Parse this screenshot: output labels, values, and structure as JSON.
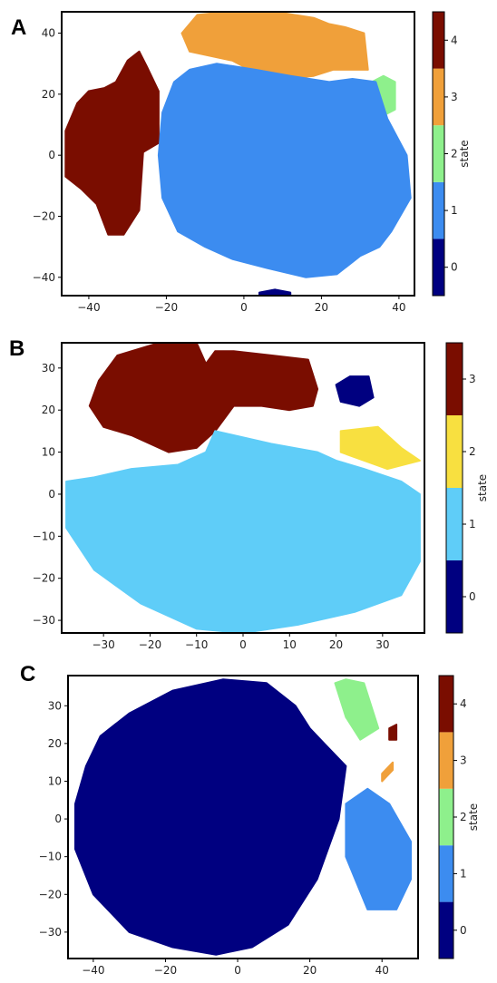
{
  "chart_data": [
    {
      "panel": "A",
      "type": "scatter",
      "title": "",
      "xlabel": "",
      "ylabel": "",
      "xlim": [
        -47,
        44
      ],
      "ylim": [
        -46,
        47
      ],
      "xticks": [
        -40,
        -20,
        0,
        20,
        40
      ],
      "yticks": [
        -40,
        -20,
        0,
        20,
        40
      ],
      "colorbar": {
        "label": "state",
        "ticks": [
          0,
          1,
          2,
          3,
          4
        ],
        "colors": [
          "#000080",
          "#3c8cf0",
          "#8ef08c",
          "#f0a03a",
          "#7a0d00"
        ]
      },
      "regions": [
        {
          "state": 4,
          "x": [
            -36,
            -33,
            -30,
            -27,
            -25,
            -22,
            -22,
            -26,
            -27,
            -31,
            -35,
            -38,
            -42,
            -46,
            -46,
            -43,
            -40
          ],
          "y": [
            22,
            24,
            31,
            34,
            29,
            21,
            4,
            1,
            -18,
            -26,
            -26,
            -16,
            -11,
            -7,
            8,
            17,
            21
          ]
        },
        {
          "state": 3,
          "x": [
            -16,
            -12,
            -4,
            8,
            18,
            22,
            26,
            31,
            32,
            23,
            18,
            10,
            3,
            -3,
            -14
          ],
          "y": [
            40,
            46,
            47,
            47,
            45,
            43,
            42,
            40,
            28,
            28,
            26,
            25,
            27,
            31,
            34
          ]
        },
        {
          "state": 2,
          "x": [
            33,
            36,
            39,
            39,
            36,
            33
          ],
          "y": [
            24,
            26,
            24,
            15,
            13,
            16
          ]
        },
        {
          "state": 1,
          "x": [
            -18,
            -14,
            -7,
            3,
            12,
            22,
            28,
            34,
            37,
            42,
            43,
            38,
            35,
            30,
            24,
            16,
            6,
            -3,
            -10,
            -17,
            -21,
            -22,
            -21
          ],
          "y": [
            24,
            28,
            30,
            28,
            26,
            24,
            25,
            24,
            12,
            0,
            -14,
            -25,
            -30,
            -33,
            -39,
            -40,
            -37,
            -34,
            -30,
            -25,
            -14,
            0,
            14
          ]
        },
        {
          "state": 0,
          "x": [
            4,
            8,
            12,
            12,
            8,
            4
          ],
          "y": [
            -45,
            -44,
            -45,
            -46.5,
            -47,
            -46
          ]
        }
      ]
    },
    {
      "panel": "B",
      "type": "scatter",
      "title": "",
      "xlabel": "",
      "ylabel": "",
      "xlim": [
        -39,
        39
      ],
      "ylim": [
        -33,
        36
      ],
      "xticks": [
        -30,
        -20,
        -10,
        0,
        10,
        20,
        30
      ],
      "yticks": [
        -30,
        -20,
        -10,
        0,
        10,
        20,
        30
      ],
      "colorbar": {
        "label": "state",
        "ticks": [
          0,
          1,
          2,
          3
        ],
        "colors": [
          "#000080",
          "#5fcdf8",
          "#f8e040",
          "#7a0d00"
        ]
      },
      "regions": [
        {
          "state": 3,
          "x": [
            -31,
            -27,
            -18,
            -10,
            -8,
            -6,
            -2,
            6,
            14,
            16,
            15,
            10,
            4,
            -2,
            -6,
            -10,
            -16,
            -24,
            -30,
            -33
          ],
          "y": [
            27,
            33,
            36,
            36,
            31,
            34,
            34,
            33,
            32,
            25,
            21,
            20,
            21,
            21,
            15,
            11,
            10,
            14,
            16,
            21
          ]
        },
        {
          "state": 0,
          "x": [
            20,
            23,
            27,
            28,
            25,
            21
          ],
          "y": [
            26,
            28,
            28,
            23,
            21,
            22
          ]
        },
        {
          "state": 2,
          "x": [
            21,
            29,
            34,
            38,
            31,
            21
          ],
          "y": [
            15,
            16,
            11,
            8,
            6,
            10
          ]
        },
        {
          "state": 1,
          "x": [
            -38,
            -32,
            -24,
            -14,
            -8,
            -6,
            6,
            16,
            20,
            26,
            34,
            38,
            38,
            34,
            24,
            12,
            0,
            -10,
            -22,
            -32,
            -38
          ],
          "y": [
            3,
            4,
            6,
            7,
            10,
            15,
            12,
            10,
            8,
            6,
            3,
            0,
            -16,
            -24,
            -28,
            -31,
            -33,
            -32,
            -26,
            -18,
            -8
          ]
        }
      ]
    },
    {
      "panel": "C",
      "type": "scatter",
      "title": "",
      "xlabel": "",
      "ylabel": "",
      "xlim": [
        -47,
        50
      ],
      "ylim": [
        -37,
        38
      ],
      "xticks": [
        -40,
        -20,
        0,
        20,
        40
      ],
      "yticks": [
        -30,
        -20,
        -10,
        0,
        10,
        20,
        30
      ],
      "colorbar": {
        "label": "state",
        "ticks": [
          0,
          1,
          2,
          3,
          4
        ],
        "colors": [
          "#000080",
          "#3c8cf0",
          "#8ef08c",
          "#f0a03a",
          "#7a0d00"
        ]
      },
      "regions": [
        {
          "state": 0,
          "x": [
            -30,
            -18,
            -4,
            8,
            16,
            20,
            24,
            30,
            28,
            22,
            14,
            4,
            -6,
            -18,
            -30,
            -40,
            -45,
            -45,
            -42,
            -38
          ],
          "y": [
            28,
            34,
            37,
            36,
            30,
            24,
            20,
            14,
            0,
            -16,
            -28,
            -34,
            -36,
            -34,
            -30,
            -20,
            -8,
            4,
            14,
            22
          ]
        },
        {
          "state": 2,
          "x": [
            27,
            30,
            35,
            39,
            34,
            30
          ],
          "y": [
            36,
            37,
            36,
            24,
            21,
            27
          ]
        },
        {
          "state": 1,
          "x": [
            30,
            36,
            42,
            48,
            48,
            44,
            36,
            30
          ],
          "y": [
            4,
            8,
            4,
            -6,
            -16,
            -24,
            -24,
            -10
          ]
        },
        {
          "state": 3,
          "x": [
            40,
            43,
            43,
            40
          ],
          "y": [
            10,
            13,
            15,
            12
          ]
        },
        {
          "state": 4,
          "x": [
            42,
            44,
            44,
            42
          ],
          "y": [
            24,
            25,
            21,
            21
          ]
        }
      ]
    }
  ],
  "panel_labels": [
    "A",
    "B",
    "C"
  ],
  "colorbar_title": "state"
}
